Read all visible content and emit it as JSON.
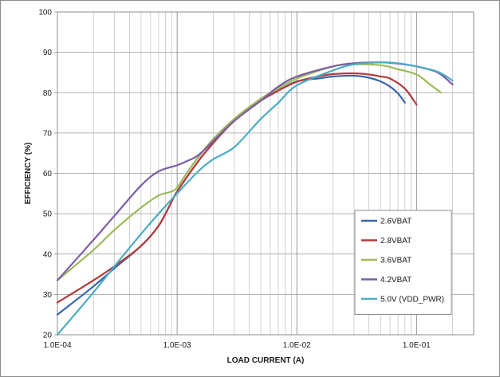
{
  "chart_data": {
    "type": "line",
    "xlabel": "LOAD CURRENT (A)",
    "ylabel": "EFFICIENCY (%)",
    "x_scale": "log",
    "xlim": [
      0.0001,
      0.3
    ],
    "ylim": [
      20,
      100
    ],
    "y_ticks": [
      20,
      30,
      40,
      50,
      60,
      70,
      80,
      90,
      100
    ],
    "x_ticks": [
      {
        "value": 0.0001,
        "label": "1.0E-04"
      },
      {
        "value": 0.001,
        "label": "1.0E-03"
      },
      {
        "value": 0.01,
        "label": "1.0E-02"
      },
      {
        "value": 0.1,
        "label": "1.0E-01"
      }
    ],
    "grid": true,
    "legend_position": "lower-right",
    "series": [
      {
        "name": "2.6VBAT",
        "color": "#3a66a8",
        "points": [
          [
            0.0001,
            25
          ],
          [
            0.0002,
            32
          ],
          [
            0.0003,
            36.5
          ],
          [
            0.0005,
            42
          ],
          [
            0.0007,
            47
          ],
          [
            0.0009,
            53
          ],
          [
            0.001,
            55.5
          ],
          [
            0.0015,
            63
          ],
          [
            0.002,
            67.5
          ],
          [
            0.003,
            73
          ],
          [
            0.005,
            78
          ],
          [
            0.007,
            80.5
          ],
          [
            0.01,
            82.8
          ],
          [
            0.015,
            83.5
          ],
          [
            0.02,
            84
          ],
          [
            0.03,
            84.2
          ],
          [
            0.04,
            83.7
          ],
          [
            0.05,
            82.8
          ],
          [
            0.06,
            81.5
          ],
          [
            0.07,
            79.8
          ],
          [
            0.08,
            77.5
          ]
        ]
      },
      {
        "name": "2.8VBAT",
        "color": "#b43b3b",
        "points": [
          [
            0.0001,
            28
          ],
          [
            0.0002,
            33.5
          ],
          [
            0.0003,
            37
          ],
          [
            0.0005,
            42
          ],
          [
            0.0007,
            47
          ],
          [
            0.0009,
            53
          ],
          [
            0.001,
            55.5
          ],
          [
            0.0015,
            63
          ],
          [
            0.002,
            67.5
          ],
          [
            0.003,
            73
          ],
          [
            0.005,
            78
          ],
          [
            0.007,
            80.5
          ],
          [
            0.01,
            82.7
          ],
          [
            0.015,
            84
          ],
          [
            0.02,
            84.6
          ],
          [
            0.03,
            84.8
          ],
          [
            0.04,
            84.5
          ],
          [
            0.05,
            84
          ],
          [
            0.06,
            83.5
          ],
          [
            0.08,
            81
          ],
          [
            0.1,
            77
          ]
        ]
      },
      {
        "name": "3.6VBAT",
        "color": "#9bbb59",
        "points": [
          [
            0.0001,
            33.5
          ],
          [
            0.0002,
            41
          ],
          [
            0.0003,
            46
          ],
          [
            0.0005,
            51.5
          ],
          [
            0.0007,
            54.5
          ],
          [
            0.0009,
            55.5
          ],
          [
            0.001,
            56.5
          ],
          [
            0.0012,
            60
          ],
          [
            0.0015,
            64
          ],
          [
            0.002,
            68.5
          ],
          [
            0.003,
            73.5
          ],
          [
            0.005,
            78.5
          ],
          [
            0.007,
            81
          ],
          [
            0.01,
            83.5
          ],
          [
            0.02,
            86.5
          ],
          [
            0.03,
            87
          ],
          [
            0.05,
            86.8
          ],
          [
            0.07,
            85.8
          ],
          [
            0.1,
            84.5
          ],
          [
            0.13,
            82
          ],
          [
            0.16,
            80
          ]
        ]
      },
      {
        "name": "4.2VBAT",
        "color": "#7b5ca6",
        "points": [
          [
            0.0001,
            33.5
          ],
          [
            0.0002,
            43.5
          ],
          [
            0.0003,
            49.5
          ],
          [
            0.0005,
            57
          ],
          [
            0.0007,
            60.5
          ],
          [
            0.001,
            62
          ],
          [
            0.0012,
            63
          ],
          [
            0.0015,
            64.5
          ],
          [
            0.002,
            68
          ],
          [
            0.003,
            73
          ],
          [
            0.005,
            78
          ],
          [
            0.007,
            81.5
          ],
          [
            0.01,
            84
          ],
          [
            0.02,
            86.5
          ],
          [
            0.03,
            87.3
          ],
          [
            0.05,
            87.5
          ],
          [
            0.07,
            87.2
          ],
          [
            0.1,
            86.5
          ],
          [
            0.15,
            85
          ],
          [
            0.2,
            82
          ]
        ]
      },
      {
        "name": "5.0V (VDD_PWR)",
        "color": "#4bacc6",
        "points": [
          [
            0.0001,
            20
          ],
          [
            0.0002,
            30.5
          ],
          [
            0.0003,
            37
          ],
          [
            0.0005,
            45
          ],
          [
            0.0007,
            50
          ],
          [
            0.001,
            55
          ],
          [
            0.0015,
            60.5
          ],
          [
            0.002,
            63.5
          ],
          [
            0.003,
            66.5
          ],
          [
            0.005,
            73.5
          ],
          [
            0.007,
            77.5
          ],
          [
            0.01,
            81.8
          ],
          [
            0.02,
            85.5
          ],
          [
            0.03,
            87
          ],
          [
            0.05,
            87.5
          ],
          [
            0.07,
            87.3
          ],
          [
            0.1,
            86.5
          ],
          [
            0.15,
            85.2
          ],
          [
            0.2,
            83
          ]
        ]
      }
    ]
  }
}
